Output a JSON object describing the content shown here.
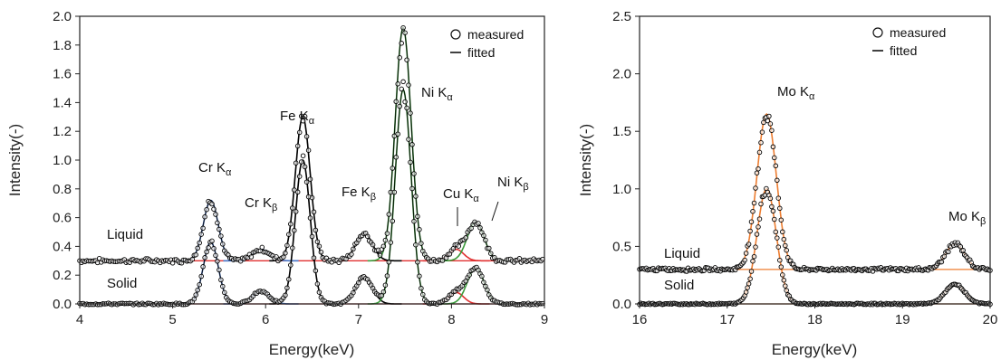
{
  "chart_data": [
    {
      "type": "scatter",
      "xlabel": "Energy(keV)",
      "ylabel": "Intensity(-)",
      "xlim": [
        4,
        9
      ],
      "ylim": [
        0,
        2.0
      ],
      "xticks": [
        "4",
        "5",
        "6",
        "7",
        "8",
        "9"
      ],
      "yticks": [
        "0.0",
        "0.2",
        "0.4",
        "0.6",
        "0.8",
        "1.0",
        "1.2",
        "1.4",
        "1.6",
        "1.8",
        "2.0"
      ],
      "legend": {
        "placement": "top-right",
        "entries": [
          "measured",
          "fitted"
        ]
      },
      "series_labels": [
        "Liquid",
        "Solid"
      ],
      "baselines": {
        "Liquid": 0.3,
        "Solid": 0.0
      },
      "colors": {
        "points": "#000000",
        "fit_total": "#000000",
        "Cr": "#4472c4",
        "Fe": "#000000",
        "Ni": "#3a9a3a",
        "Cu": "#e03030",
        "baseline": "#e03030"
      },
      "peaks": [
        {
          "element": "Cr",
          "line": "α",
          "energy": 5.41,
          "height_solid": 0.43,
          "height_liquid": 0.42,
          "width": 0.08
        },
        {
          "element": "Cr",
          "line": "β",
          "energy": 5.95,
          "height_solid": 0.09,
          "height_liquid": 0.08,
          "width": 0.09
        },
        {
          "element": "Fe",
          "line": "α",
          "energy": 6.4,
          "height_solid": 1.0,
          "height_liquid": 1.0,
          "width": 0.08
        },
        {
          "element": "Fe",
          "line": "β",
          "energy": 7.06,
          "height_solid": 0.19,
          "height_liquid": 0.19,
          "width": 0.09
        },
        {
          "element": "Ni",
          "line": "α",
          "energy": 7.48,
          "height_solid": 1.49,
          "height_liquid": 1.62,
          "width": 0.085
        },
        {
          "element": "Cu",
          "line": "α",
          "energy": 8.05,
          "height_solid": 0.08,
          "height_liquid": 0.08,
          "width": 0.08
        },
        {
          "element": "Ni",
          "line": "β",
          "energy": 8.26,
          "height_solid": 0.25,
          "height_liquid": 0.27,
          "width": 0.09
        }
      ],
      "annotations": [
        {
          "main": "Cr K",
          "sub": "α"
        },
        {
          "main": "Cr K",
          "sub": "β"
        },
        {
          "main": "Fe K",
          "sub": "α"
        },
        {
          "main": "Fe K",
          "sub": "β"
        },
        {
          "main": "Ni K",
          "sub": "α"
        },
        {
          "main": "Cu K",
          "sub": "α"
        },
        {
          "main": "Ni K",
          "sub": "β"
        }
      ]
    },
    {
      "type": "scatter",
      "xlabel": "Energy(keV)",
      "ylabel": "Intensity(-)",
      "xlim": [
        16,
        20
      ],
      "ylim": [
        0,
        2.5
      ],
      "xticks": [
        "16",
        "17",
        "18",
        "19",
        "20"
      ],
      "yticks": [
        "0.0",
        "0.5",
        "1.0",
        "1.5",
        "2.0",
        "2.5"
      ],
      "legend": {
        "placement": "top-right",
        "entries": [
          "measured",
          "fitted"
        ]
      },
      "series_labels": [
        "Liquid",
        "Solid"
      ],
      "baselines": {
        "Liquid": 0.3,
        "Solid": 0.0
      },
      "colors": {
        "points": "#000000",
        "fit": "#ed7d31"
      },
      "peaks": [
        {
          "element": "Mo",
          "line": "α",
          "energy": 17.45,
          "height_solid": 1.0,
          "height_liquid": 1.35,
          "width": 0.11
        },
        {
          "element": "Mo",
          "line": "β",
          "energy": 19.6,
          "height_solid": 0.17,
          "height_liquid": 0.22,
          "width": 0.11
        }
      ],
      "annotations": [
        {
          "main": "Mo K",
          "sub": "α"
        },
        {
          "main": "Mo K",
          "sub": "β"
        }
      ]
    }
  ]
}
